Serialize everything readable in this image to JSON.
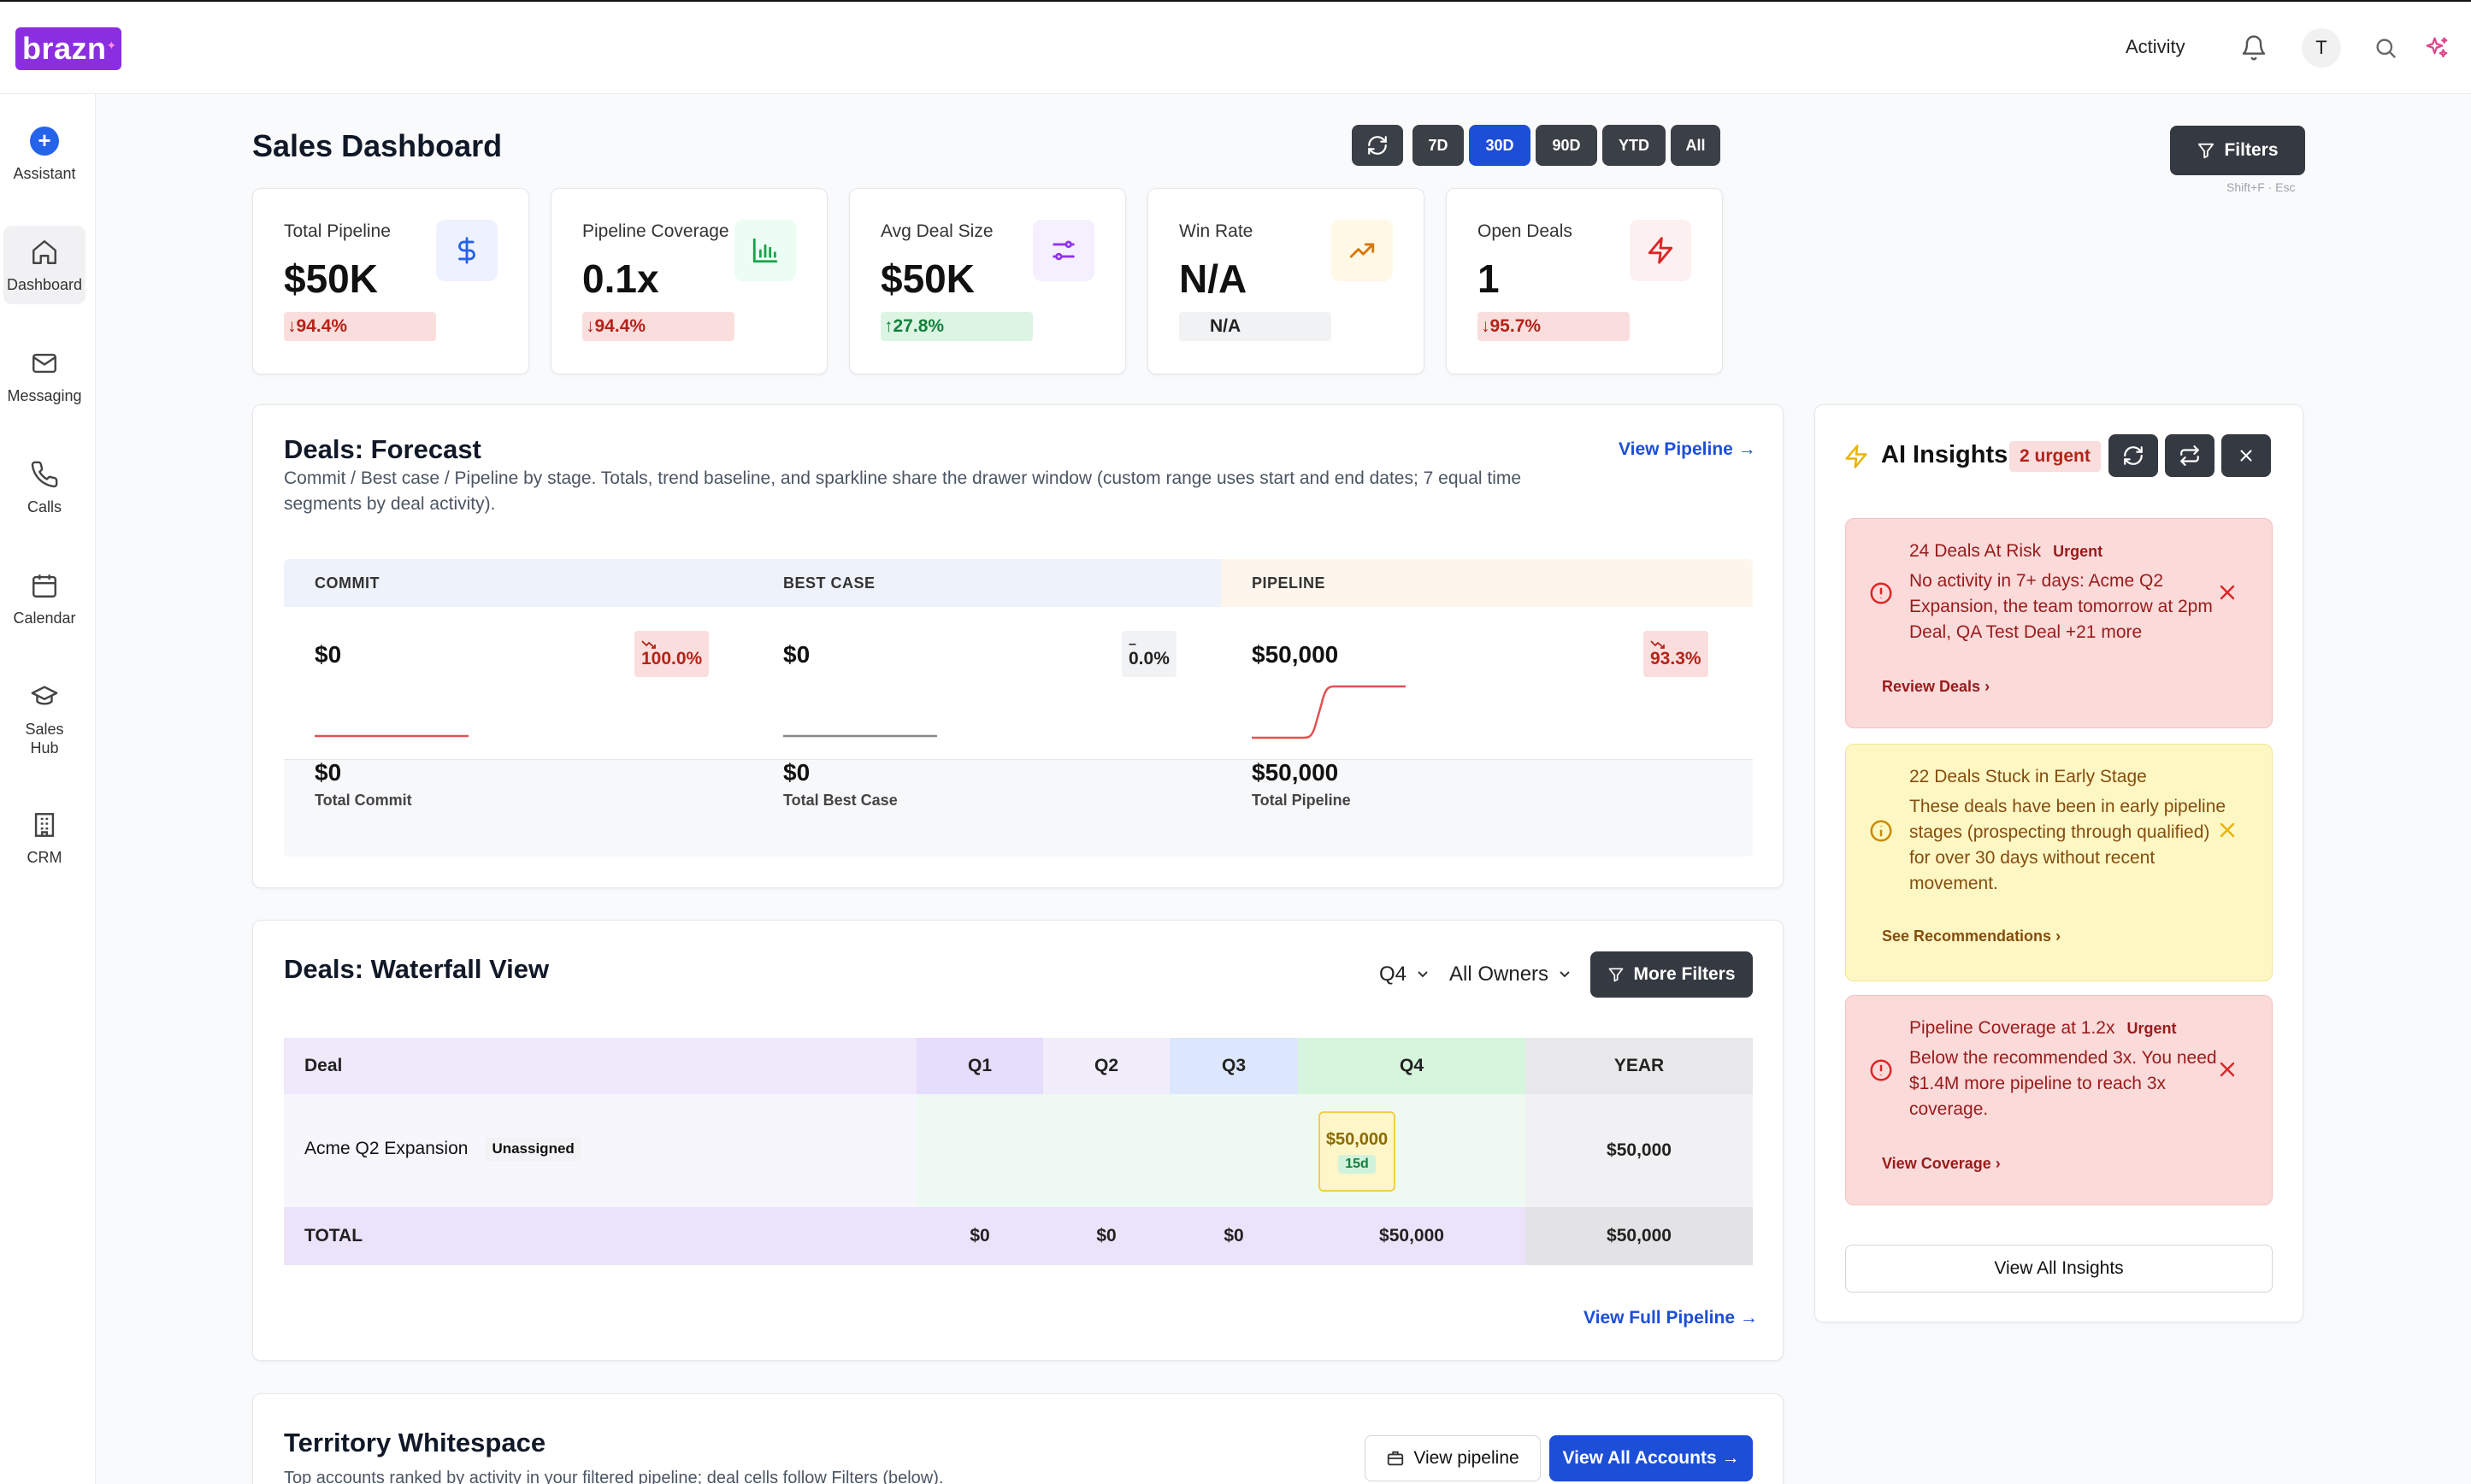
{
  "brand": "brazn",
  "topbar": {
    "activity": "Activity",
    "avatar": "T"
  },
  "sidebar": {
    "items": [
      {
        "label": "Assistant",
        "icon": "plus-circle-icon"
      },
      {
        "label": "Dashboard",
        "icon": "home-icon",
        "active": true
      },
      {
        "label": "Messaging",
        "icon": "mail-icon"
      },
      {
        "label": "Calls",
        "icon": "phone-icon"
      },
      {
        "label": "Calendar",
        "icon": "calendar-icon"
      },
      {
        "label": "Sales Hub",
        "icon": "graduation-cap-icon"
      },
      {
        "label": "CRM",
        "icon": "building-icon"
      }
    ]
  },
  "header": {
    "title": "Sales Dashboard",
    "ranges": [
      "7D",
      "30D",
      "90D",
      "YTD",
      "All"
    ],
    "active_range": "30D",
    "filters_label": "Filters",
    "filters_hint": "Shift+F · Esc"
  },
  "kpis": [
    {
      "title": "Total Pipeline",
      "value": "$50K",
      "change": "↓94.4%",
      "trend": "down",
      "icon": "dollar-icon",
      "color": "#2563eb"
    },
    {
      "title": "Pipeline Coverage",
      "value": "0.1x",
      "change": "↓94.4%",
      "trend": "down",
      "icon": "bar-chart-icon",
      "color": "#16a34a"
    },
    {
      "title": "Avg Deal Size",
      "value": "$50K",
      "change": "↑27.8%",
      "trend": "up",
      "icon": "sliders-icon",
      "color": "#9333ea"
    },
    {
      "title": "Win Rate",
      "value": "N/A",
      "change": "N/A",
      "trend": "flat",
      "icon": "trending-up-icon",
      "color": "#d97706"
    },
    {
      "title": "Open Deals",
      "value": "1",
      "change": "↓95.7%",
      "trend": "down",
      "icon": "zap-icon",
      "color": "#dc2626"
    }
  ],
  "forecast": {
    "title": "Deals: Forecast",
    "view_link": "View Pipeline →",
    "subtitle": "Commit / Best case / Pipeline by stage. Totals, trend baseline, and sparkline share the drawer window (custom range uses start and end dates; 7 equal time segments by deal activity).",
    "columns": [
      {
        "header": "COMMIT",
        "value": "$0",
        "change": "100.0%",
        "total": "$0",
        "total_label": "Total Commit"
      },
      {
        "header": "BEST CASE",
        "value": "$0",
        "change": "0.0%",
        "total": "$0",
        "total_label": "Total Best Case"
      },
      {
        "header": "PIPELINE",
        "value": "$50,000",
        "change": "93.3%",
        "total": "$50,000",
        "total_label": "Total Pipeline"
      }
    ]
  },
  "waterfall": {
    "title": "Deals: Waterfall View",
    "quarter": "Q4",
    "owner": "All Owners",
    "more_filters": "More Filters",
    "headers": [
      "Deal",
      "Q1",
      "Q2",
      "Q3",
      "Q4",
      "YEAR"
    ],
    "rows": [
      {
        "deal": "Acme Q2 Expansion",
        "owner_badge": "Unassigned",
        "q4_value": "$50,000",
        "q4_days": "15d",
        "year": "$50,000"
      }
    ],
    "total": {
      "label": "TOTAL",
      "q1": "$0",
      "q2": "$0",
      "q3": "$0",
      "q4": "$50,000",
      "year": "$50,000"
    },
    "view_link": "View Full Pipeline →"
  },
  "territory": {
    "title": "Territory Whitespace",
    "subtitle": "Top accounts ranked by activity in your filtered pipeline; deal cells follow Filters (below).",
    "view_pipeline": "View pipeline",
    "view_accounts": "View All Accounts →"
  },
  "insights": {
    "title": "AI Insights",
    "urgent_badge": "2 urgent",
    "cards": [
      {
        "title": "24 Deals At Risk",
        "tag": "Urgent",
        "body": "No activity in 7+ days: Acme Q2 Expansion, the team tomorrow at 2pm Deal, QA Test Deal +21 more",
        "action": "Review Deals",
        "tone": "red"
      },
      {
        "title": "22 Deals Stuck in Early Stage",
        "tag": "",
        "body": "These deals have been in early pipeline stages (prospecting through qualified) for over 30 days without recent movement.",
        "action": "See Recommendations",
        "tone": "yellow"
      },
      {
        "title": "Pipeline Coverage at 1.2x",
        "tag": "Urgent",
        "body": "Below the recommended 3x. You need $1.4M more pipeline to reach 3x coverage.",
        "action": "View Coverage",
        "tone": "red"
      }
    ],
    "view_all": "View All Insights"
  }
}
